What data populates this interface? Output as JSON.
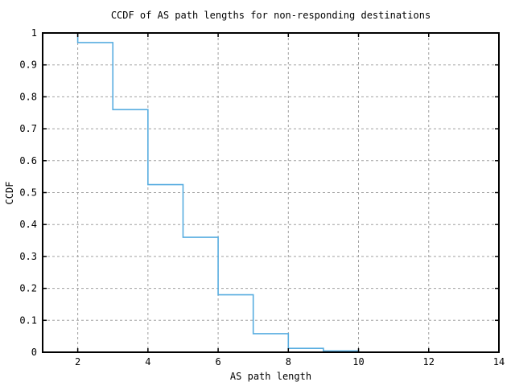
{
  "title": "CCDF of AS path lengths for non-responding destinations",
  "chart_data": {
    "type": "line",
    "style": "step",
    "title": "CCDF of AS path lengths for non-responding destinations",
    "xlabel": "AS path length",
    "ylabel": "CCDF",
    "xlim": [
      1,
      14
    ],
    "ylim": [
      0,
      1
    ],
    "grid": true,
    "legend": "none",
    "x_ticks": [
      2,
      4,
      6,
      8,
      10,
      12,
      14
    ],
    "x_tick_labels": [
      "2",
      "4",
      "6",
      "8",
      "10",
      "12",
      "14"
    ],
    "y_ticks": [
      0,
      0.1,
      0.2,
      0.3,
      0.4,
      0.5,
      0.6,
      0.7,
      0.8,
      0.9,
      1
    ],
    "y_tick_labels": [
      "0",
      "0.1",
      "0.2",
      "0.3",
      "0.4",
      "0.5",
      "0.6",
      "0.7",
      "0.8",
      "0.9",
      "1"
    ],
    "series": [
      {
        "name": "ccdf",
        "x": [
          1,
          2,
          3,
          4,
          5,
          6,
          7,
          8,
          9,
          10
        ],
        "y": [
          1.0,
          0.97,
          0.76,
          0.525,
          0.36,
          0.18,
          0.058,
          0.012,
          0.004,
          0.0
        ]
      }
    ],
    "colors": {
      "line": "#58ade0",
      "grid": "#a0a0a0",
      "border": "#000000",
      "background": "#ffffff"
    }
  }
}
